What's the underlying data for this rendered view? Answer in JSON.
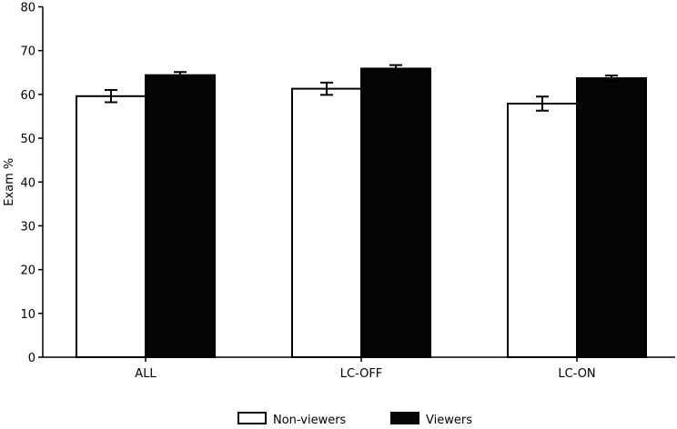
{
  "chart_data": {
    "type": "bar",
    "title": "",
    "xlabel": "",
    "ylabel": "Exam %",
    "ylim": [
      0,
      80
    ],
    "yticks": [
      0,
      10,
      20,
      30,
      40,
      50,
      60,
      70,
      80
    ],
    "categories": [
      "ALL",
      "LC-OFF",
      "LC-ON"
    ],
    "series": [
      {
        "name": "Non-viewers",
        "values": [
          59.6,
          61.3,
          57.9
        ],
        "errors": [
          1.4,
          1.4,
          1.6
        ],
        "color": "#ffffff"
      },
      {
        "name": "Viewers",
        "values": [
          64.4,
          65.9,
          63.7
        ],
        "errors": [
          0.7,
          0.8,
          0.6
        ],
        "color": "#050505"
      }
    ],
    "grid": false,
    "legend_position": "bottom"
  }
}
